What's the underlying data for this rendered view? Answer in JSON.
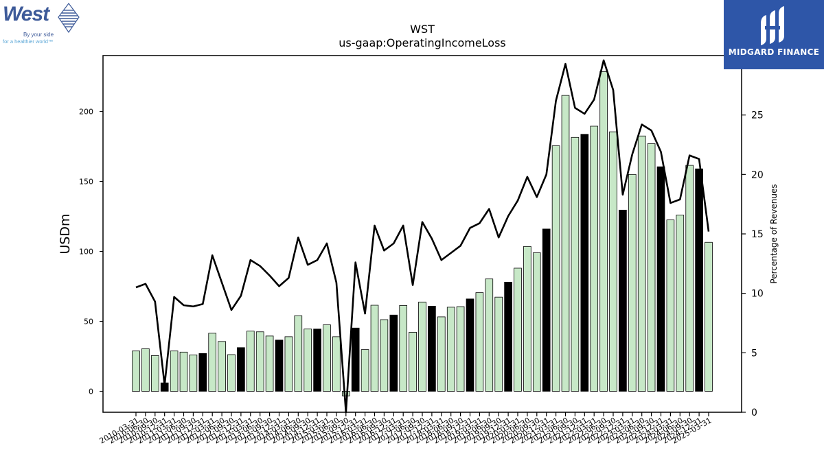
{
  "header": {
    "title": "WST",
    "subtitle": "us-gaap:OperatingIncomeLoss"
  },
  "logo_left": {
    "wordmark": "West",
    "tagline_1": "By your side",
    "tagline_2": "for a healthier world™",
    "brand_color": "#3d5a99",
    "tagline_color": "#5aa6d6"
  },
  "logo_right": {
    "name": "MIDGARD FINANCE",
    "background": "#2e56a8",
    "text_color": "#ffffff"
  },
  "chart_data": {
    "type": "bar",
    "title": "WST",
    "subtitle": "us-gaap:OperatingIncomeLoss",
    "ylabel": "USDm",
    "y2label": "Percentage of Revenues",
    "ylim": [
      -15,
      240
    ],
    "y2lim": [
      0,
      30
    ],
    "yticks": [
      0,
      50,
      100,
      150,
      200
    ],
    "y2ticks": [
      0,
      5,
      10,
      15,
      20,
      25,
      30
    ],
    "grid": false,
    "legend": "none",
    "categories": [
      "2010-03-31",
      "2010-06-30",
      "2010-09-30",
      "2010-12-31",
      "2011-03-31",
      "2011-06-30",
      "2011-09-30",
      "2011-12-31",
      "2012-03-31",
      "2012-06-30",
      "2012-09-30",
      "2012-12-31",
      "2013-03-31",
      "2013-06-30",
      "2013-09-30",
      "2013-12-31",
      "2014-03-31",
      "2014-06-30",
      "2014-09-30",
      "2014-12-31",
      "2015-03-31",
      "2015-06-30",
      "2015-09-30",
      "2015-12-31",
      "2016-03-31",
      "2016-06-30",
      "2016-09-30",
      "2016-12-31",
      "2017-03-31",
      "2017-06-30",
      "2017-09-30",
      "2017-12-31",
      "2018-03-31",
      "2018-06-30",
      "2018-09-30",
      "2018-12-31",
      "2019-03-31",
      "2019-06-30",
      "2019-09-30",
      "2019-12-31",
      "2020-03-31",
      "2020-06-30",
      "2020-09-30",
      "2020-12-31",
      "2021-03-31",
      "2021-06-30",
      "2021-09-30",
      "2021-12-31",
      "2022-03-31",
      "2022-06-30",
      "2022-09-30",
      "2022-12-31",
      "2023-03-31",
      "2023-06-30",
      "2023-09-30",
      "2023-12-31",
      "2024-03-31",
      "2024-06-30",
      "2024-09-30",
      "2024-12-31",
      "2025-03-31"
    ],
    "series": [
      {
        "kind": "bar",
        "axis": "left",
        "values": [
          28.8,
          30.4,
          25.5,
          6.0,
          28.8,
          28.0,
          26.0,
          27.0,
          41.5,
          35.6,
          26.2,
          31.2,
          43.0,
          42.5,
          39.5,
          36.6,
          39.0,
          54.0,
          44.5,
          44.5,
          47.5,
          39.0,
          -3.3,
          45.2,
          29.8,
          61.5,
          51.2,
          54.5,
          61.3,
          42.2,
          63.8,
          60.8,
          53.2,
          60.1,
          60.5,
          66.0,
          70.5,
          80.3,
          67.3,
          78.0,
          88.0,
          103.5,
          99.0,
          116.0,
          175.5,
          211.5,
          181.5,
          183.7,
          189.5,
          228.5,
          185.5,
          129.5,
          155.0,
          182.5,
          177.0,
          160.5,
          122.5,
          126.0,
          161.5,
          159.0,
          106.5
        ],
        "colors": {
          "Q1": "#c7e8c7",
          "Q2": "#c7e8c7",
          "Q3": "#c7e8c7",
          "Q4": "#000000"
        }
      },
      {
        "kind": "line",
        "axis": "right",
        "values": [
          10.5,
          10.8,
          9.3,
          2.3,
          9.7,
          9.0,
          8.9,
          9.1,
          13.2,
          10.9,
          8.6,
          9.8,
          12.8,
          12.3,
          11.5,
          10.6,
          11.3,
          14.7,
          12.4,
          12.8,
          14.2,
          10.9,
          0.0,
          12.6,
          8.3,
          15.7,
          13.6,
          14.2,
          15.7,
          10.7,
          16.0,
          14.6,
          12.8,
          13.4,
          14.0,
          15.5,
          15.9,
          17.1,
          14.7,
          16.5,
          17.8,
          19.8,
          18.1,
          20.0,
          26.2,
          29.3,
          25.6,
          25.1,
          26.3,
          29.6,
          27.1,
          18.3,
          21.7,
          24.2,
          23.7,
          21.9,
          17.6,
          17.9,
          21.6,
          21.3,
          15.2
        ],
        "color": "#000000"
      }
    ]
  }
}
